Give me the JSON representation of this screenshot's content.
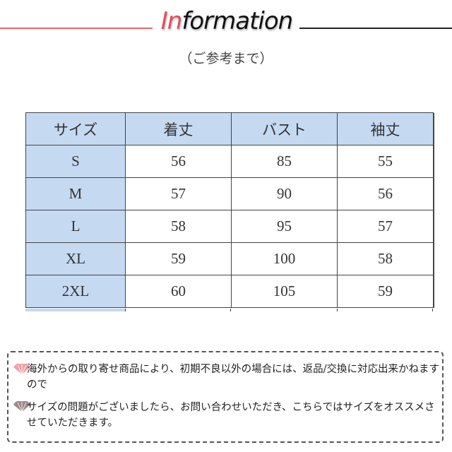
{
  "header": {
    "title_accent": "In",
    "title_rest": "formation",
    "subtitle": "（ご参考まで）"
  },
  "table": {
    "columns": [
      "サイズ",
      "着丈",
      "バスト",
      "袖丈"
    ],
    "rows": [
      [
        "S",
        "56",
        "85",
        "55"
      ],
      [
        "M",
        "57",
        "90",
        "56"
      ],
      [
        "L",
        "58",
        "95",
        "57"
      ],
      [
        "XL",
        "59",
        "100",
        "58"
      ],
      [
        "2XL",
        "60",
        "105",
        "59"
      ]
    ]
  },
  "notes": [
    {
      "icon": "fan-icon",
      "color": "#f0a0a8",
      "text": "海外からの取り寄せ商品により、初期不良以外の場合には、返品/交換に対応出来かねますので"
    },
    {
      "icon": "fan-icon",
      "color": "#a08888",
      "text": "サイズの問題がございましたら、お問い合わせいただき、こちらではサイズをオススメさせていただきます。"
    }
  ],
  "colors": {
    "accent": "#e0505a",
    "header_bg": "#c5d9f1"
  }
}
